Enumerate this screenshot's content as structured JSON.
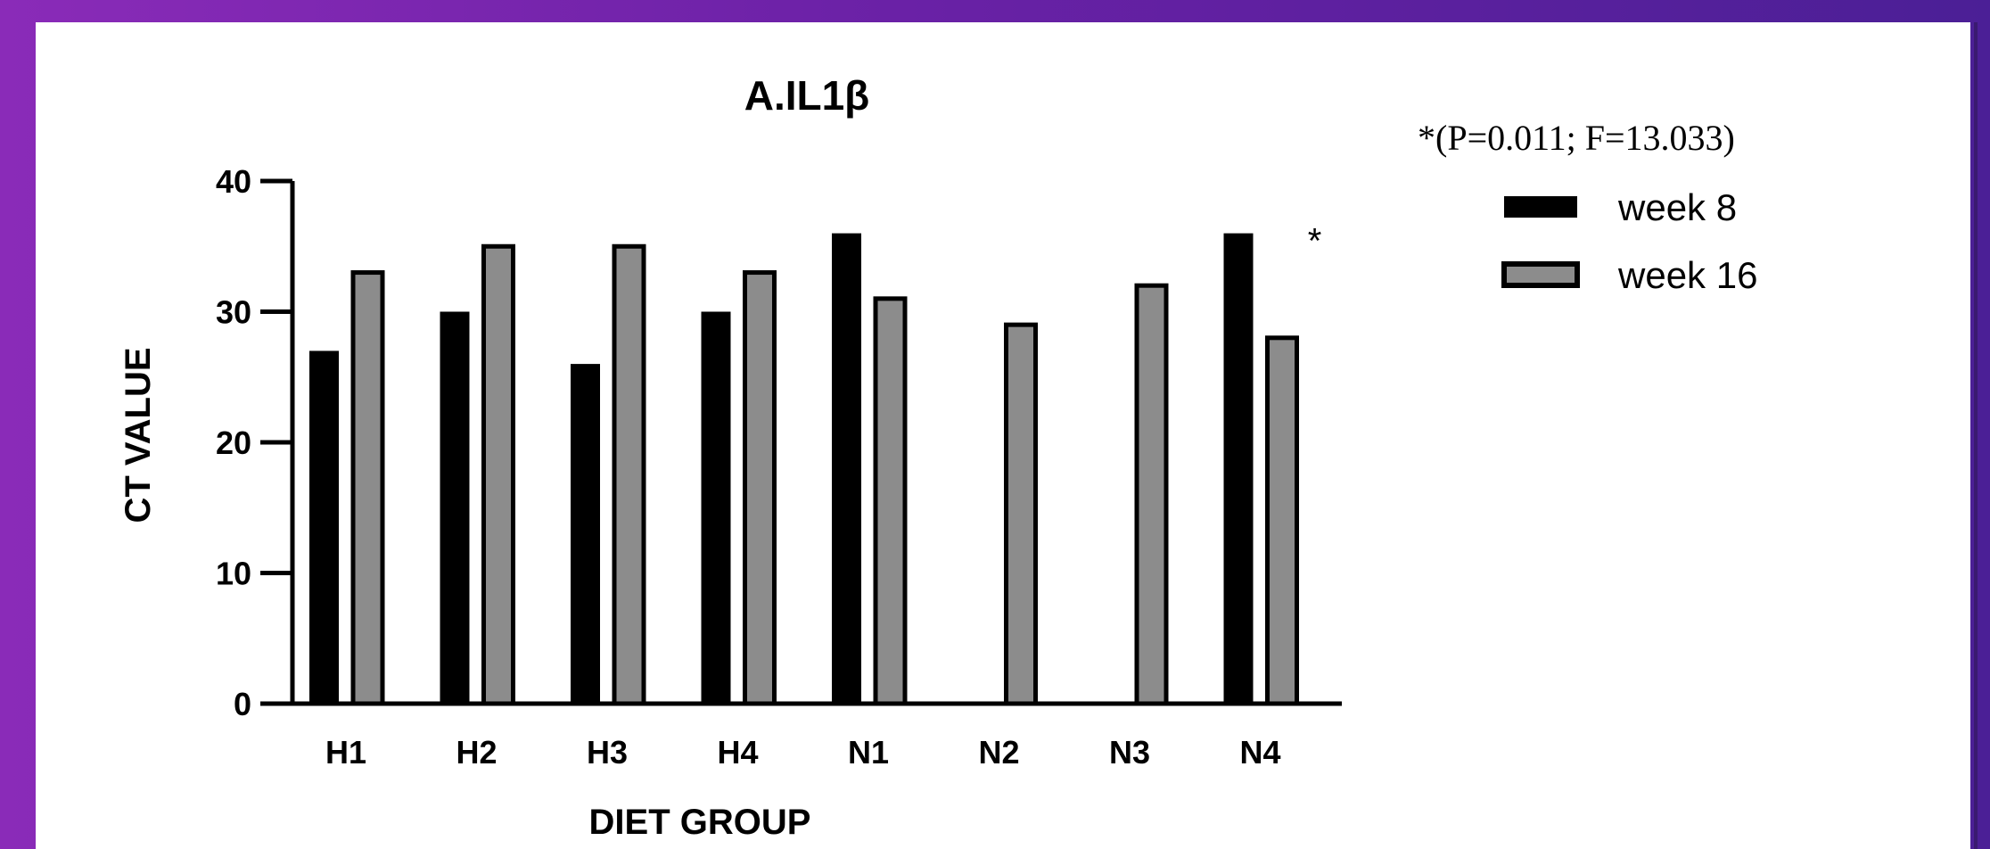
{
  "chart_data": {
    "type": "bar",
    "title": "A.IL1β",
    "xlabel": "DIET GROUP",
    "ylabel": "CT VALUE",
    "ylim": [
      0,
      40
    ],
    "yticks": [
      "0",
      "10",
      "20",
      "30",
      "40"
    ],
    "categories": [
      "H1",
      "H2",
      "H3",
      "H4",
      "N1",
      "N2",
      "N3",
      "N4"
    ],
    "series": [
      {
        "name": "week 8",
        "color": "#000000",
        "values": [
          27,
          30,
          26,
          30,
          36,
          0,
          0,
          36
        ]
      },
      {
        "name": "week 16",
        "color": "#8c8c8c",
        "values": [
          33,
          35,
          35,
          33,
          31,
          29,
          32,
          28
        ]
      }
    ],
    "annotation": {
      "category": "N4",
      "text": "*"
    },
    "stat_note": "*(P=0.011; F=13.033)",
    "legend_position": "right"
  }
}
